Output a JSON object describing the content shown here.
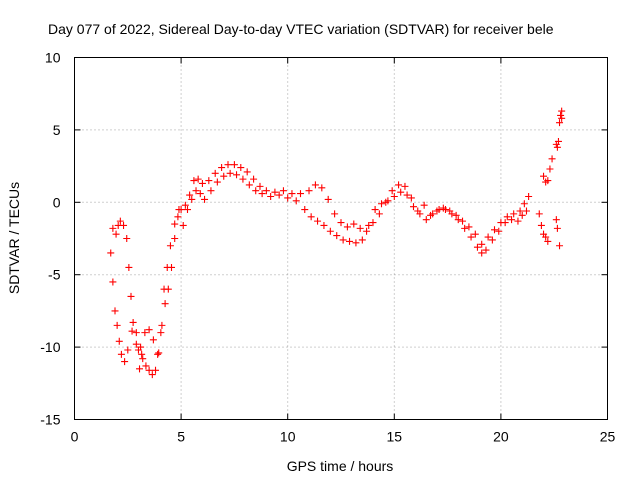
{
  "chart_data": {
    "type": "scatter",
    "title": "Day 077 of 2022, Sidereal Day-to-day VTEC variation (SDTVAR) for receiver bele",
    "xlabel": "GPS time / hours",
    "ylabel": "SDTVAR / TECUs",
    "xlim": [
      0,
      25
    ],
    "ylim": [
      -15,
      10
    ],
    "xticks": [
      0,
      5,
      10,
      15,
      20,
      25
    ],
    "yticks": [
      -15,
      -10,
      -5,
      0,
      5,
      10
    ],
    "xtick_labels": [
      "0",
      "5",
      "10",
      "15",
      "20",
      "25"
    ],
    "ytick_labels": [
      "-15",
      "-10",
      "-5",
      "0",
      "5",
      "10"
    ],
    "grid": true,
    "legend": "none",
    "marker": "plus",
    "color": "#ff0000",
    "series": [
      {
        "name": "SDTVAR branch A",
        "points": [
          [
            1.7,
            -3.5
          ],
          [
            1.8,
            -5.5
          ],
          [
            1.9,
            -7.5
          ],
          [
            2.0,
            -8.5
          ],
          [
            2.1,
            -9.6
          ],
          [
            2.2,
            -10.5
          ],
          [
            2.35,
            -11.0
          ],
          [
            2.5,
            -10.2
          ],
          [
            2.7,
            -8.9
          ],
          [
            2.9,
            -9.8
          ],
          [
            3.05,
            -11.5
          ],
          [
            3.15,
            -10.5
          ],
          [
            3.3,
            -9.0
          ],
          [
            3.5,
            -8.8
          ],
          [
            3.7,
            -9.5
          ],
          [
            3.9,
            -10.5
          ],
          [
            4.05,
            -9.0
          ],
          [
            4.2,
            -6.0
          ],
          [
            4.35,
            -4.5
          ],
          [
            4.5,
            -3.0
          ],
          [
            4.7,
            -1.5
          ],
          [
            4.9,
            -0.5
          ],
          [
            5.1,
            -1.6
          ],
          [
            5.3,
            -0.5
          ],
          [
            5.5,
            0.2
          ],
          [
            5.7,
            0.8
          ],
          [
            5.9,
            0.6
          ],
          [
            6.1,
            0.2
          ],
          [
            6.4,
            0.8
          ],
          [
            6.7,
            1.4
          ],
          [
            7.0,
            1.8
          ],
          [
            7.3,
            2.0
          ],
          [
            7.6,
            1.9
          ],
          [
            7.9,
            1.6
          ],
          [
            8.2,
            1.2
          ],
          [
            8.5,
            0.8
          ],
          [
            8.8,
            0.6
          ],
          [
            9.2,
            0.4
          ],
          [
            9.6,
            0.5
          ],
          [
            10.0,
            0.3
          ],
          [
            10.4,
            0.1
          ],
          [
            10.8,
            -0.5
          ],
          [
            11.1,
            -1.0
          ],
          [
            11.4,
            -1.3
          ],
          [
            11.7,
            -1.6
          ],
          [
            12.0,
            -2.0
          ],
          [
            12.3,
            -2.3
          ],
          [
            12.6,
            -2.6
          ],
          [
            12.9,
            -2.7
          ],
          [
            13.2,
            -2.8
          ],
          [
            13.5,
            -2.6
          ],
          [
            13.8,
            -1.6
          ],
          [
            14.1,
            -0.5
          ],
          [
            14.4,
            -0.1
          ],
          [
            14.7,
            0.1
          ],
          [
            15.0,
            0.4
          ],
          [
            15.3,
            0.7
          ],
          [
            15.6,
            0.5
          ],
          [
            15.9,
            -0.3
          ],
          [
            16.2,
            -0.8
          ],
          [
            16.5,
            -1.2
          ],
          [
            16.8,
            -0.8
          ],
          [
            17.1,
            -0.5
          ],
          [
            17.4,
            -0.5
          ],
          [
            17.7,
            -0.8
          ],
          [
            18.0,
            -1.2
          ],
          [
            18.3,
            -1.8
          ],
          [
            18.6,
            -2.4
          ],
          [
            18.9,
            -3.1
          ],
          [
            19.1,
            -3.5
          ],
          [
            19.3,
            -3.3
          ],
          [
            19.6,
            -2.6
          ],
          [
            19.9,
            -2.0
          ],
          [
            20.2,
            -1.4
          ],
          [
            20.5,
            -1.2
          ],
          [
            20.8,
            -1.3
          ],
          [
            21.0,
            -0.9
          ],
          [
            21.2,
            -0.6
          ]
        ]
      },
      {
        "name": "SDTVAR branch B",
        "points": [
          [
            1.8,
            -1.8
          ],
          [
            1.95,
            -2.2
          ],
          [
            2.05,
            -1.6
          ],
          [
            2.15,
            -1.3
          ],
          [
            2.3,
            -1.6
          ],
          [
            2.45,
            -2.5
          ],
          [
            2.55,
            -4.5
          ],
          [
            2.65,
            -6.5
          ],
          [
            2.75,
            -8.3
          ],
          [
            2.9,
            -9.0
          ],
          [
            3.0,
            -10.2
          ],
          [
            3.1,
            -10.0
          ],
          [
            3.2,
            -10.8
          ],
          [
            3.35,
            -11.3
          ],
          [
            3.5,
            -11.6
          ],
          [
            3.65,
            -11.9
          ],
          [
            3.8,
            -11.6
          ],
          [
            3.95,
            -10.4
          ],
          [
            4.1,
            -8.5
          ],
          [
            4.25,
            -7.0
          ],
          [
            4.4,
            -6.0
          ],
          [
            4.55,
            -4.5
          ],
          [
            4.7,
            -2.5
          ],
          [
            4.85,
            -1.0
          ],
          [
            5.0,
            -0.5
          ],
          [
            5.2,
            -0.2
          ],
          [
            5.4,
            0.5
          ],
          [
            5.6,
            1.5
          ],
          [
            5.8,
            1.6
          ],
          [
            6.0,
            1.3
          ],
          [
            6.3,
            1.5
          ],
          [
            6.6,
            2.0
          ],
          [
            6.9,
            2.4
          ],
          [
            7.2,
            2.6
          ],
          [
            7.5,
            2.6
          ],
          [
            7.8,
            2.4
          ],
          [
            8.1,
            2.1
          ],
          [
            8.4,
            1.6
          ],
          [
            8.7,
            1.1
          ],
          [
            9.0,
            0.8
          ],
          [
            9.4,
            0.7
          ],
          [
            9.8,
            0.8
          ],
          [
            10.2,
            0.6
          ],
          [
            10.6,
            0.6
          ],
          [
            11.0,
            0.8
          ],
          [
            11.3,
            1.2
          ],
          [
            11.6,
            1.0
          ],
          [
            11.9,
            0.2
          ],
          [
            12.2,
            -0.8
          ],
          [
            12.5,
            -1.4
          ],
          [
            12.8,
            -1.7
          ],
          [
            13.1,
            -1.5
          ],
          [
            13.4,
            -1.8
          ],
          [
            13.7,
            -2.0
          ],
          [
            14.0,
            -1.4
          ],
          [
            14.3,
            -0.8
          ],
          [
            14.6,
            0.0
          ],
          [
            14.9,
            0.8
          ],
          [
            15.2,
            1.2
          ],
          [
            15.5,
            1.1
          ],
          [
            15.8,
            0.3
          ],
          [
            16.1,
            -0.6
          ],
          [
            16.4,
            -0.2
          ],
          [
            16.7,
            -0.9
          ],
          [
            17.0,
            -0.6
          ],
          [
            17.3,
            -0.4
          ],
          [
            17.6,
            -0.6
          ],
          [
            17.9,
            -0.9
          ],
          [
            18.2,
            -1.3
          ],
          [
            18.5,
            -1.7
          ],
          [
            18.8,
            -2.2
          ],
          [
            19.1,
            -2.9
          ],
          [
            19.4,
            -2.4
          ],
          [
            19.7,
            -1.9
          ],
          [
            20.0,
            -1.4
          ],
          [
            20.3,
            -1.0
          ],
          [
            20.6,
            -0.8
          ],
          [
            20.9,
            -0.6
          ],
          [
            21.1,
            -0.1
          ],
          [
            21.3,
            0.4
          ]
        ]
      },
      {
        "name": "SDTVAR late segment",
        "points": [
          [
            21.8,
            -0.8
          ],
          [
            21.9,
            -1.6
          ],
          [
            22.0,
            -2.2
          ],
          [
            22.1,
            -2.4
          ],
          [
            22.2,
            -2.7
          ],
          [
            22.0,
            1.8
          ],
          [
            22.1,
            1.4
          ],
          [
            22.2,
            1.5
          ],
          [
            22.3,
            2.3
          ],
          [
            22.4,
            3.0
          ],
          [
            22.6,
            -1.2
          ],
          [
            22.65,
            -1.8
          ],
          [
            22.6,
            4.0
          ],
          [
            22.65,
            3.8
          ],
          [
            22.7,
            4.2
          ],
          [
            22.75,
            5.5
          ],
          [
            22.8,
            6.0
          ],
          [
            22.85,
            5.8
          ],
          [
            22.85,
            6.3
          ],
          [
            22.75,
            -3.0
          ]
        ]
      }
    ]
  }
}
